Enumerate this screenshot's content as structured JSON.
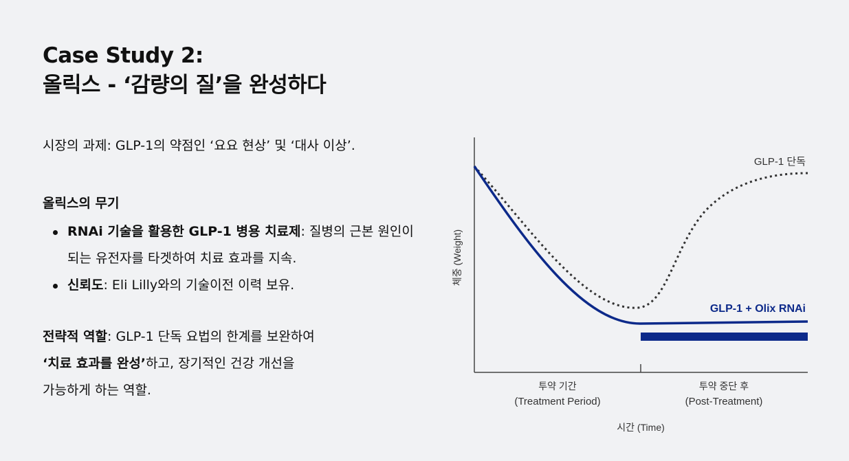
{
  "title": {
    "line1": "Case Study 2:",
    "line2": "올릭스 - ‘감량의 질’을 완성하다"
  },
  "intro": "시장의 과제: GLP-1의 약점인 ‘요요 현상’ 및 ‘대사 이상’.",
  "weapons": {
    "heading": "올릭스의 무기",
    "items": [
      {
        "bold": "RNAi 기술을 활용한 GLP-1 병용 치료제",
        "rest": ": 질병의 근본 원인이 되는 유전자를 타겟하여 치료 효과를 지속."
      },
      {
        "bold": "신뢰도",
        "rest": ": Eli Lilly와의 기술이전 이력 보유."
      }
    ]
  },
  "strategy": {
    "label": "전략적 역할",
    "text1": ": GLP-1 단독 요법의 한계를 보완하여",
    "bold2": "‘치료 효과를 완성’",
    "text2": "하고, 장기적인 건강 개선을",
    "text3": "가능하게 하는 역할."
  },
  "chart_data": {
    "type": "line",
    "ylabel": "체중 (Weight)",
    "xlabel": "시간 (Time)",
    "phases": [
      {
        "line1": "투약 기간",
        "line2": "(Treatment Period)"
      },
      {
        "line1": "투약 중단 후",
        "line2": "(Post-Treatment)"
      }
    ],
    "series": [
      {
        "name": "GLP-1 단독",
        "style": "dotted",
        "color": "#333333"
      },
      {
        "name": "GLP-1 + Olix RNAi",
        "style": "solid",
        "color": "#0d2a8a"
      }
    ],
    "accent_color": "#0d2a8a"
  }
}
